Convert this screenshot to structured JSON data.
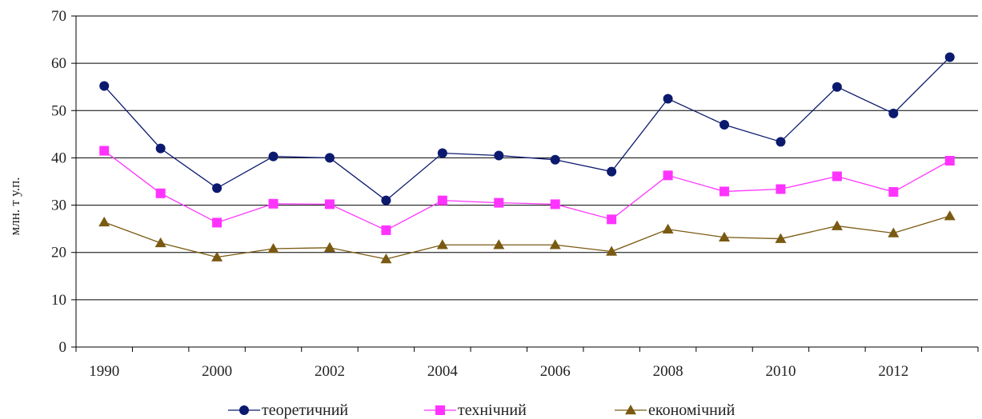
{
  "chart_data": {
    "type": "line",
    "xlabel": "",
    "ylabel": "млн. т у.п.",
    "ylim": [
      0,
      70
    ],
    "yticks": [
      0,
      10,
      20,
      30,
      40,
      50,
      60,
      70
    ],
    "x": [
      1990,
      1999,
      2000,
      2001,
      2002,
      2003,
      2004,
      2005,
      2006,
      2007,
      2008,
      2009,
      2010,
      2011,
      2012,
      2013
    ],
    "xtick_labels": [
      "1990",
      "2000",
      "2002",
      "2004",
      "2006",
      "2008",
      "2010",
      "2012"
    ],
    "grid": "horizontal",
    "legend_position": "bottom",
    "series": [
      {
        "name": "теоретичний",
        "color": "#0b1a6e",
        "marker": "circle",
        "values": [
          55.2,
          42.0,
          33.6,
          40.3,
          40.0,
          31.0,
          41.0,
          40.5,
          39.6,
          37.1,
          52.5,
          47.0,
          43.4,
          55.0,
          49.4,
          61.3
        ]
      },
      {
        "name": "технічний",
        "color": "#ff33ff",
        "marker": "square",
        "values": [
          41.5,
          32.5,
          26.3,
          30.3,
          30.2,
          24.7,
          31.0,
          30.5,
          30.2,
          27.0,
          36.3,
          32.9,
          33.4,
          36.1,
          32.8,
          39.4
        ]
      },
      {
        "name": "економічний",
        "color": "#7a5a12",
        "marker": "triangle",
        "values": [
          26.4,
          22.0,
          19.0,
          20.8,
          21.0,
          18.6,
          21.6,
          21.6,
          21.6,
          20.2,
          24.9,
          23.2,
          22.9,
          25.6,
          24.1,
          27.7
        ]
      }
    ]
  }
}
